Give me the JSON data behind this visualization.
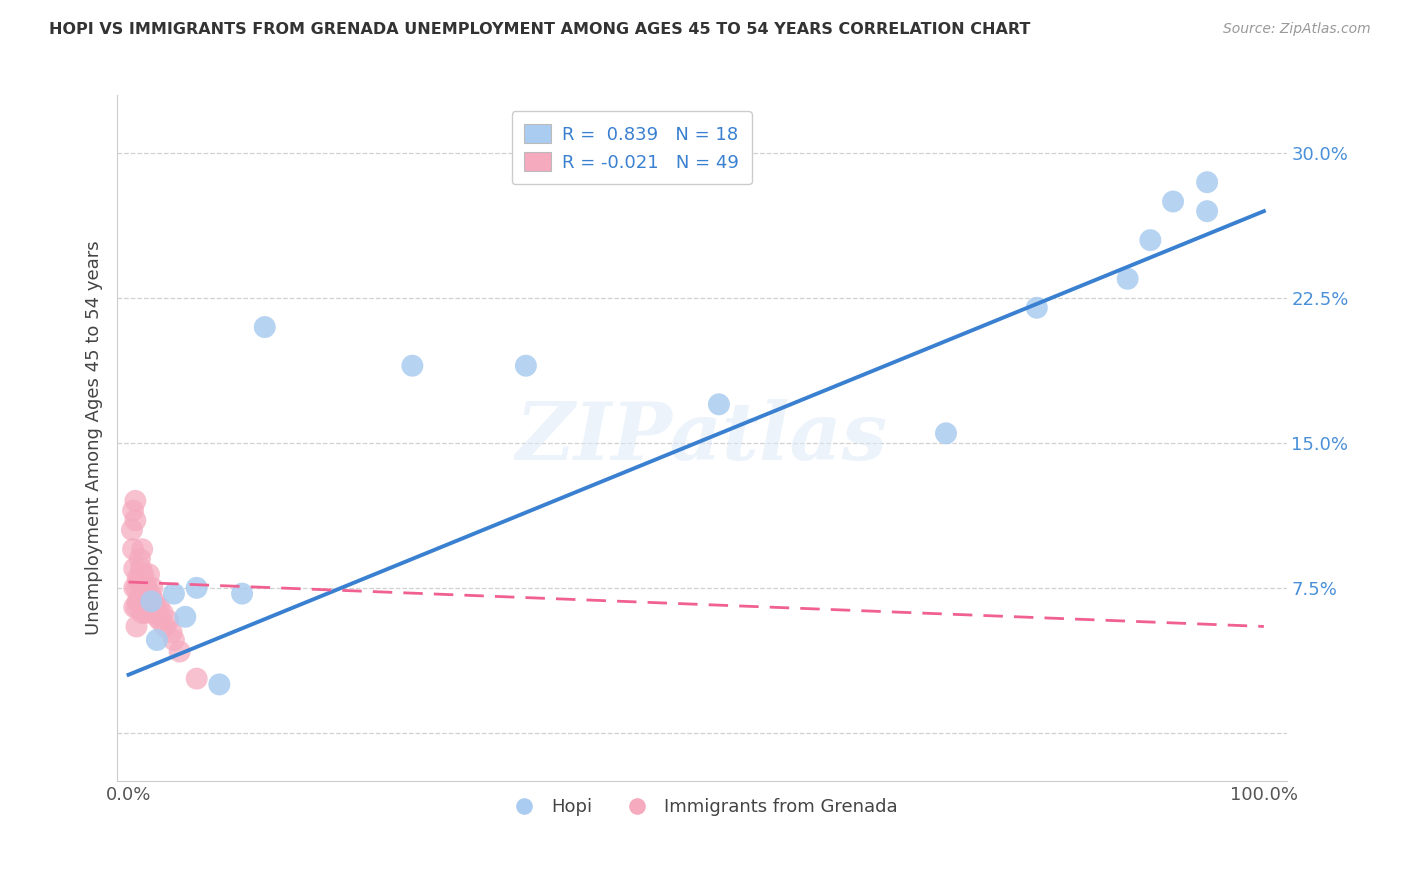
{
  "title": "HOPI VS IMMIGRANTS FROM GRENADA UNEMPLOYMENT AMONG AGES 45 TO 54 YEARS CORRELATION CHART",
  "source": "Source: ZipAtlas.com",
  "ylabel": "Unemployment Among Ages 45 to 54 years",
  "xlim": [
    -0.01,
    1.02
  ],
  "ylim": [
    -0.025,
    0.33
  ],
  "hopi_R": "0.839",
  "hopi_N": "18",
  "grenada_R": "-0.021",
  "grenada_N": "49",
  "hopi_color": "#aaccf0",
  "grenada_color": "#f5aabe",
  "hopi_line_color": "#3a80d0",
  "grenada_line_color": "#f06090",
  "background_color": "#ffffff",
  "hopi_scatter_x": [
    0.02,
    0.025,
    0.04,
    0.05,
    0.06,
    0.08,
    0.1,
    0.12,
    0.25,
    0.52,
    0.72,
    0.8,
    0.88,
    0.9,
    0.92,
    0.95,
    0.95,
    0.35
  ],
  "hopi_scatter_y": [
    0.068,
    0.048,
    0.072,
    0.06,
    0.075,
    0.025,
    0.072,
    0.21,
    0.19,
    0.17,
    0.155,
    0.22,
    0.235,
    0.255,
    0.275,
    0.27,
    0.285,
    0.19
  ],
  "grenada_scatter_x": [
    0.003,
    0.004,
    0.004,
    0.005,
    0.005,
    0.005,
    0.006,
    0.006,
    0.007,
    0.007,
    0.007,
    0.008,
    0.008,
    0.009,
    0.009,
    0.01,
    0.01,
    0.01,
    0.011,
    0.011,
    0.012,
    0.012,
    0.013,
    0.013,
    0.014,
    0.014,
    0.015,
    0.015,
    0.016,
    0.016,
    0.017,
    0.018,
    0.018,
    0.019,
    0.02,
    0.021,
    0.022,
    0.023,
    0.024,
    0.025,
    0.027,
    0.028,
    0.03,
    0.032,
    0.035,
    0.038,
    0.04,
    0.045,
    0.06
  ],
  "grenada_scatter_y": [
    0.105,
    0.095,
    0.115,
    0.085,
    0.075,
    0.065,
    0.12,
    0.11,
    0.075,
    0.065,
    0.055,
    0.08,
    0.068,
    0.078,
    0.068,
    0.09,
    0.078,
    0.068,
    0.085,
    0.072,
    0.095,
    0.062,
    0.082,
    0.072,
    0.078,
    0.068,
    0.072,
    0.062,
    0.075,
    0.065,
    0.07,
    0.082,
    0.065,
    0.072,
    0.068,
    0.075,
    0.062,
    0.068,
    0.065,
    0.06,
    0.065,
    0.058,
    0.062,
    0.055,
    0.058,
    0.052,
    0.048,
    0.042,
    0.028
  ],
  "hopi_line_x": [
    0.0,
    1.0
  ],
  "hopi_line_y": [
    0.03,
    0.27
  ],
  "grenada_line_x": [
    0.0,
    1.0
  ],
  "grenada_line_y": [
    0.078,
    0.055
  ],
  "watermark": "ZIPatlas",
  "ytick_positions": [
    0.0,
    0.075,
    0.15,
    0.225,
    0.3
  ],
  "ytick_labels": [
    "",
    "7.5%",
    "15.0%",
    "22.5%",
    "30.0%"
  ],
  "title_fontsize": 11.5,
  "source_fontsize": 10,
  "tick_fontsize": 13,
  "ylabel_fontsize": 13
}
